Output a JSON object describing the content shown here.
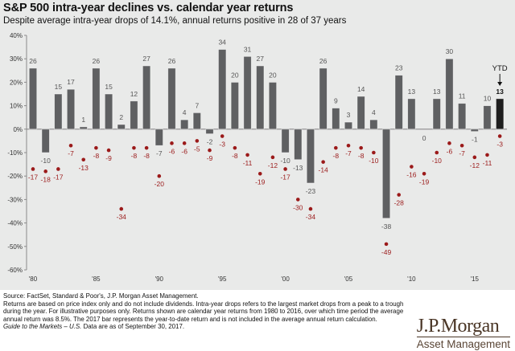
{
  "header": {
    "title": "S&P 500 intra-year declines vs. calendar year returns",
    "subtitle": "Despite average intra-year drops of 14.1%, annual returns positive in 28 of 37 years"
  },
  "chart_data": {
    "type": "bar",
    "title": "S&P 500 intra-year declines vs. calendar year returns",
    "subtitle": "Despite average intra-year drops of 14.1%, annual returns positive in 28 of 37 years",
    "xlabel": "",
    "ylabel": "",
    "ylim": [
      -60,
      40
    ],
    "y_ticks": [
      40,
      30,
      20,
      10,
      0,
      -10,
      -20,
      -30,
      -40,
      -50,
      -60
    ],
    "y_tick_labels": [
      "40%",
      "30%",
      "20%",
      "10%",
      "0%",
      "-10%",
      "-20%",
      "-30%",
      "-40%",
      "-50%",
      "-60%"
    ],
    "x": [
      1980,
      1981,
      1982,
      1983,
      1984,
      1985,
      1986,
      1987,
      1988,
      1989,
      1990,
      1991,
      1992,
      1993,
      1994,
      1995,
      1996,
      1997,
      1998,
      1999,
      2000,
      2001,
      2002,
      2003,
      2004,
      2005,
      2006,
      2007,
      2008,
      2009,
      2010,
      2011,
      2012,
      2013,
      2014,
      2015,
      2016,
      2017
    ],
    "x_tick_labels": [
      {
        "year": 1980,
        "label": "'80"
      },
      {
        "year": 1985,
        "label": "'85"
      },
      {
        "year": 1990,
        "label": "'90"
      },
      {
        "year": 1995,
        "label": "'95"
      },
      {
        "year": 2000,
        "label": "'00"
      },
      {
        "year": 2005,
        "label": "'05"
      },
      {
        "year": 2010,
        "label": "'10"
      },
      {
        "year": 2015,
        "label": "'15"
      }
    ],
    "grid": false,
    "series": [
      {
        "name": "Calendar year return",
        "type": "bar",
        "color": "#5f6062",
        "highlight_color": "#1e1e1e",
        "values": [
          26,
          -10,
          15,
          17,
          1,
          26,
          15,
          2,
          12,
          27,
          -7,
          26,
          4,
          7,
          -2,
          34,
          20,
          31,
          27,
          20,
          -10,
          -13,
          -23,
          26,
          9,
          3,
          14,
          4,
          -38,
          23,
          13,
          0,
          13,
          30,
          11,
          -1,
          10,
          13
        ]
      },
      {
        "name": "Intra-year decline",
        "type": "scatter",
        "color": "#9b1a1a",
        "values": [
          -17,
          -18,
          -17,
          -7,
          -13,
          -8,
          -9,
          -34,
          -8,
          -8,
          -20,
          -6,
          -6,
          -5,
          -9,
          -3,
          -8,
          -11,
          -19,
          -12,
          -17,
          -30,
          -34,
          -14,
          -8,
          -7,
          -8,
          -10,
          -49,
          -28,
          -16,
          -19,
          -10,
          -6,
          -7,
          -12,
          -11,
          -3
        ]
      }
    ],
    "annotations": [
      {
        "text": "YTD",
        "target_year": 2017,
        "arrow": "down"
      }
    ]
  },
  "footer": {
    "source": "Source: FactSet, Standard & Poor's, J.P. Morgan Asset Management.",
    "note_lines": [
      "Returns are based on price index only and do not include dividends. Intra-year drops refers to the largest market drops from a peak to a trough",
      "during the year. For illustrative purposes only. Returns shown are calendar year returns from 1980 to 2016, over which time period the average",
      "annual return was 8.5%. The 2017 bar represents the year-to-date return and is not included in the average annual return calculation."
    ],
    "guide_italic": "Guide to the Markets – U.S.",
    "guide_rest": " Data are as of September 30, 2017."
  },
  "logo": {
    "name": "J.P.Morgan",
    "sub": "Asset Management"
  }
}
